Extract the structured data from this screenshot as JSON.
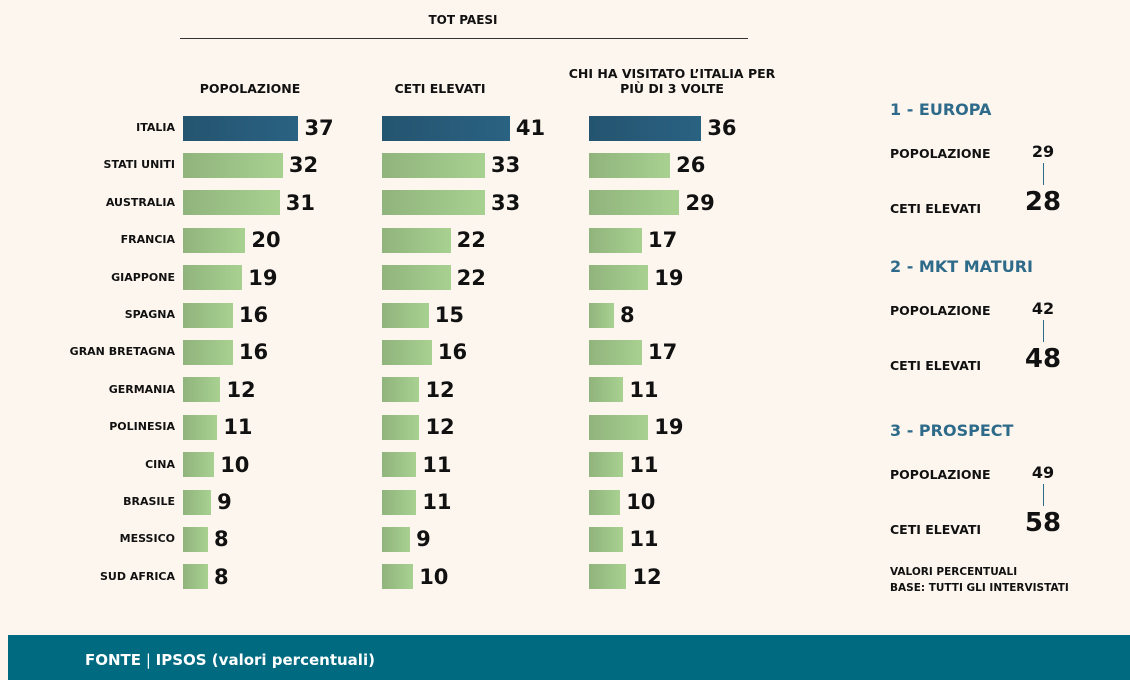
{
  "header": "TOT PAESI",
  "chart_data": {
    "type": "bar",
    "categories": [
      "ITALIA",
      "STATI UNITI",
      "AUSTRALIA",
      "FRANCIA",
      "GIAPPONE",
      "SPAGNA",
      "GRAN BRETAGNA",
      "GERMANIA",
      "POLINESIA",
      "CINA",
      "BRASILE",
      "MESSICO",
      "SUD AFRICA"
    ],
    "highlight": "ITALIA",
    "highlight_color": "#2a6282",
    "series": [
      {
        "name": "POPOLAZIONE",
        "color": "#a8d191",
        "values": [
          37,
          32,
          31,
          20,
          19,
          16,
          16,
          12,
          11,
          10,
          9,
          8,
          8
        ]
      },
      {
        "name": "CETI ELEVATI",
        "color": "#a8d191",
        "values": [
          41,
          33,
          33,
          22,
          22,
          15,
          16,
          12,
          12,
          11,
          11,
          9,
          10
        ]
      },
      {
        "name": "CHI HA VISITATO L’ITALIA PER PIÙ DI 3 VOLTE",
        "color": "#a8d191",
        "values": [
          36,
          26,
          29,
          17,
          19,
          8,
          17,
          11,
          19,
          11,
          10,
          11,
          12
        ]
      }
    ]
  },
  "segments": [
    {
      "title": "1 - EUROPA",
      "rows": [
        {
          "label": "POPOLAZIONE",
          "value": 29
        },
        {
          "label": "CETI ELEVATI",
          "value": 28
        }
      ]
    },
    {
      "title": "2 - MKT MATURI",
      "rows": [
        {
          "label": "POPOLAZIONE",
          "value": 42
        },
        {
          "label": "CETI ELEVATI",
          "value": 48
        }
      ]
    },
    {
      "title": "3 - PROSPECT",
      "rows": [
        {
          "label": "POPOLAZIONE",
          "value": 49
        },
        {
          "label": "CETI ELEVATI",
          "value": 58
        }
      ]
    }
  ],
  "notes": [
    "VALORI PERCENTUALI",
    "BASE: TUTTI GLI INTERVISTATI"
  ],
  "footer": {
    "source": "FONTE",
    "separator": "|",
    "text": "IPSOS (valori percentuali)"
  }
}
